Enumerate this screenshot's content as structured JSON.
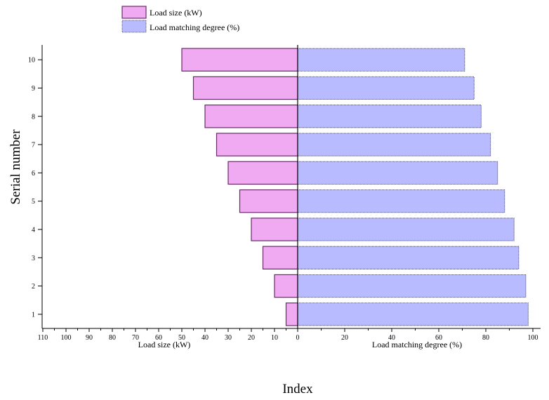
{
  "chart_data": {
    "type": "bar",
    "orientation": "horizontal-diverging",
    "title": "",
    "xlabel": "Index",
    "ylabel": "Serial number",
    "categories": [
      "1",
      "2",
      "3",
      "4",
      "5",
      "6",
      "7",
      "8",
      "9",
      "10"
    ],
    "series": [
      {
        "name": "Load size (kW)",
        "side": "left",
        "axis_label": "Load size (kW)",
        "values": [
          5,
          10,
          15,
          20,
          25,
          30,
          35,
          40,
          45,
          50
        ],
        "color": "#efaaf2",
        "stroke": "#6a2b6a"
      },
      {
        "name": "Load matching degree (%)",
        "side": "right",
        "axis_label": "Load matching degree (%)",
        "values": [
          98,
          97,
          94,
          92,
          88,
          85,
          82,
          78,
          75,
          71
        ],
        "color": "#b8bbff",
        "stroke": "#2a2a55"
      }
    ],
    "left_axis": {
      "ticks": [
        "110",
        "100",
        "90",
        "80",
        "70",
        "60",
        "50",
        "40",
        "30",
        "20",
        "10",
        "0"
      ],
      "range": [
        0,
        110
      ]
    },
    "right_axis": {
      "ticks": [
        "0",
        "20",
        "40",
        "60",
        "80",
        "100"
      ],
      "range": [
        0,
        100
      ]
    },
    "legend_position": "top-left",
    "grid": false
  }
}
